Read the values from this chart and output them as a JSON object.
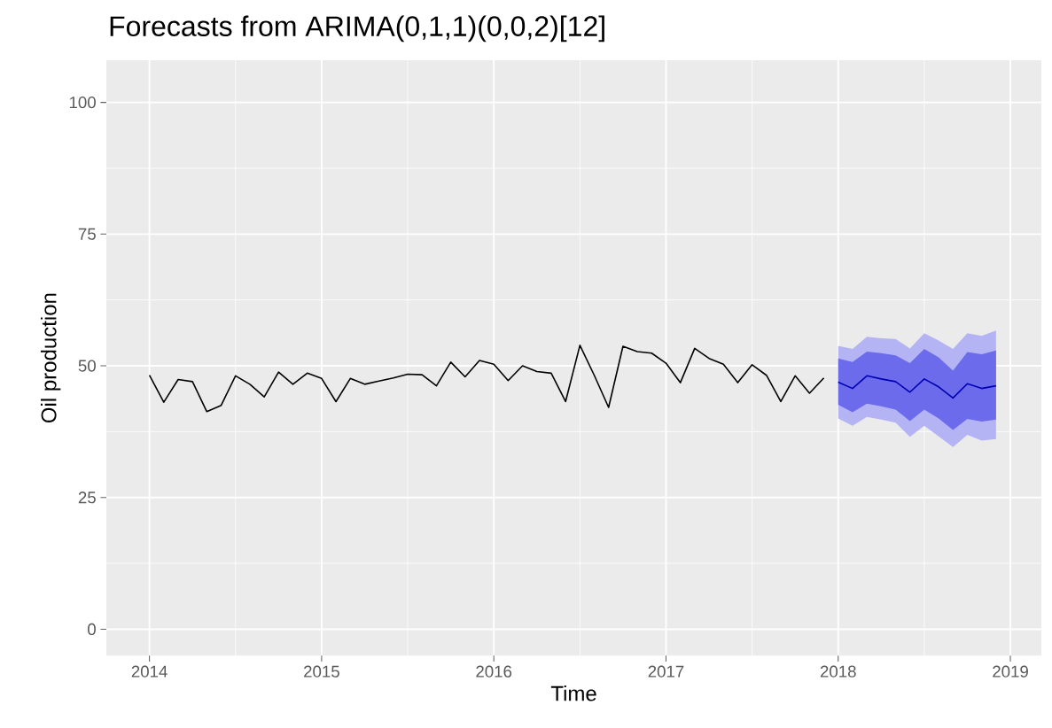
{
  "chart_data": {
    "type": "line",
    "title": "Forecasts from ARIMA(0,1,1)(0,0,2)[12]",
    "xlabel": "Time",
    "ylabel": "Oil production",
    "xlim": [
      2013.75,
      2019.18
    ],
    "ylim": [
      -5,
      108
    ],
    "xticks": [
      2014,
      2015,
      2016,
      2017,
      2018,
      2019
    ],
    "yticks": [
      0,
      25,
      50,
      75,
      100
    ],
    "grid": true,
    "series": [
      {
        "color": "#000000",
        "x": [
          2014.0,
          2014.0833,
          2014.1667,
          2014.25,
          2014.3333,
          2014.4167,
          2014.5,
          2014.5833,
          2014.6667,
          2014.75,
          2014.8333,
          2014.9167,
          2015.0,
          2015.0833,
          2015.1667,
          2015.25,
          2015.3333,
          2015.4167,
          2015.5,
          2015.5833,
          2015.6667,
          2015.75,
          2015.8333,
          2015.9167,
          2016.0,
          2016.0833,
          2016.1667,
          2016.25,
          2016.3333,
          2016.4167,
          2016.5,
          2016.5833,
          2016.6667,
          2016.75,
          2016.8333,
          2016.9167,
          2017.0,
          2017.0833,
          2017.1667,
          2017.25,
          2017.3333,
          2017.4167,
          2017.5,
          2017.5833,
          2017.6667,
          2017.75,
          2017.8333,
          2017.9167
        ],
        "values": [
          48.2,
          43.1,
          47.4,
          47.0,
          41.3,
          42.5,
          48.1,
          46.5,
          44.1,
          48.8,
          46.5,
          48.6,
          47.6,
          43.2,
          47.6,
          46.5,
          47.1,
          47.7,
          48.4,
          48.3,
          46.2,
          50.7,
          47.9,
          51.0,
          50.3,
          47.2,
          50.0,
          48.9,
          48.6,
          43.2,
          53.9,
          48.2,
          42.1,
          53.7,
          52.7,
          52.4,
          50.5,
          46.8,
          53.3,
          51.4,
          50.3,
          46.8,
          50.2,
          48.2,
          43.2,
          48.1,
          44.8,
          47.7
        ]
      },
      {
        "color": "#b4b4f5",
        "x": [
          2018.0,
          2018.0833,
          2018.1667,
          2018.25,
          2018.3333,
          2018.4167,
          2018.5,
          2018.5833,
          2018.6667,
          2018.75,
          2018.8333,
          2018.9167
        ],
        "values": [
          null,
          null,
          null,
          null,
          null,
          null,
          null,
          null,
          null,
          null,
          null,
          null
        ],
        "lower": [
          40.0,
          38.6,
          40.3,
          39.8,
          39.2,
          36.5,
          38.6,
          36.6,
          34.6,
          36.9,
          35.8,
          36.1
        ],
        "upper": [
          53.8,
          53.2,
          55.5,
          55.2,
          55.1,
          53.3,
          56.2,
          54.8,
          53.2,
          56.2,
          55.7,
          56.7
        ]
      },
      {
        "color": "#6b6bec",
        "x": [
          2018.0,
          2018.0833,
          2018.1667,
          2018.25,
          2018.3333,
          2018.4167,
          2018.5,
          2018.5833,
          2018.6667,
          2018.75,
          2018.8333,
          2018.9167
        ],
        "values": [
          null,
          null,
          null,
          null,
          null,
          null,
          null,
          null,
          null,
          null,
          null,
          null
        ],
        "lower": [
          42.6,
          41.2,
          42.8,
          42.3,
          41.7,
          39.5,
          41.7,
          40.0,
          37.8,
          39.9,
          39.4,
          39.8
        ],
        "upper": [
          51.4,
          50.7,
          52.7,
          52.4,
          52.0,
          50.5,
          53.2,
          51.6,
          49.1,
          52.6,
          52.2,
          52.9
        ]
      },
      {
        "color": "#0000b4",
        "x": [
          2018.0,
          2018.0833,
          2018.1667,
          2018.25,
          2018.3333,
          2018.4167,
          2018.5,
          2018.5833,
          2018.6667,
          2018.75,
          2018.8333,
          2018.9167
        ],
        "values": [
          46.9,
          45.7,
          48.1,
          47.5,
          47.0,
          45.0,
          47.5,
          46.0,
          43.9,
          46.6,
          45.7,
          46.2
        ]
      }
    ]
  }
}
